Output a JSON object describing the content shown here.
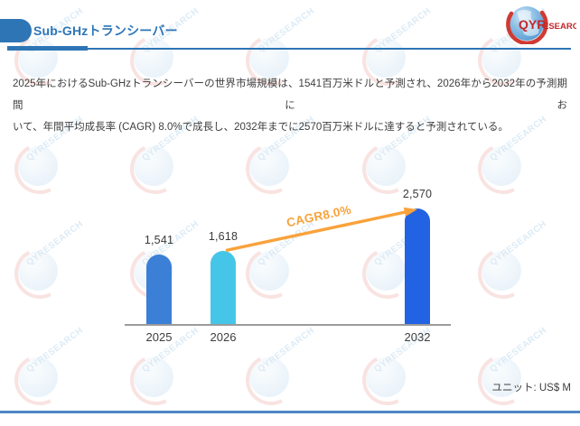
{
  "header": {
    "title": "Sub-GHzトランシーバー"
  },
  "branding": {
    "logo_text_qyr": "QYR",
    "logo_text_esearch": "ESEARCH",
    "watermark_text": "QYRESEARCH"
  },
  "paragraph": {
    "line1": "2025年におけるSub-GHzトランシーバーの世界市場規模は、1541百万米ドルと予測され、2026年から2032年の予測期間にお",
    "line2": "いて、年間平均成長率 (CAGR) 8.0%で成長し、2032年までに2570百万米ドルに達すると予測されている。"
  },
  "chart_data": {
    "type": "bar",
    "title": "",
    "xlabel": "",
    "ylabel": "",
    "categories": [
      "2025",
      "2026",
      "2032"
    ],
    "values": [
      1541,
      1618,
      2570
    ],
    "value_labels": [
      "1,541",
      "1,618",
      "2,570"
    ],
    "bar_colors": [
      "#3B7FD6",
      "#45C6E8",
      "#2263E3"
    ],
    "annotation": "CAGR8.0%",
    "annotation_color": "#F9A23B",
    "unit_label": "ユニット: US$ M",
    "ylim": [
      0,
      2800
    ],
    "grid": false,
    "legend": "none",
    "axis_color": "#9B9B9B"
  }
}
